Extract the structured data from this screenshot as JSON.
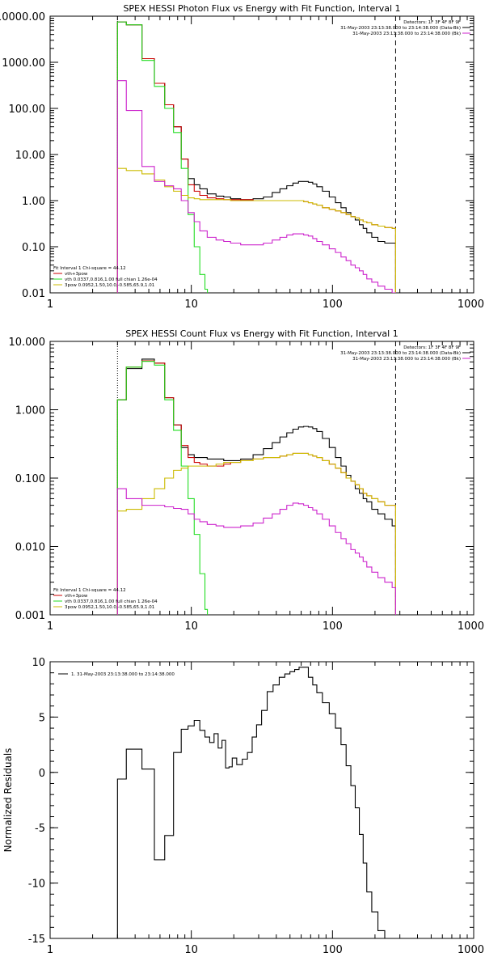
{
  "chart_data": [
    {
      "type": "line",
      "title": "SPEX HESSI Photon Flux vs Energy with Fit Function, Interval 1",
      "xlabel": "",
      "ylabel": "",
      "xscale": "log",
      "yscale": "log",
      "xlim": [
        1,
        1000
      ],
      "ylim": [
        0.01,
        10000
      ],
      "x_ticks": [
        1,
        10,
        100,
        1000
      ],
      "x_tick_labels": [
        "1",
        "10",
        "100",
        "1000"
      ],
      "y_ticks": [
        0.01,
        0.1,
        1,
        10,
        100,
        1000,
        10000
      ],
      "y_tick_labels": [
        "0.01",
        "0.10",
        "1.00",
        "10.00",
        "100.00",
        "1000.00",
        "10000.00"
      ],
      "legend_top_right": [
        "Detectors: 1F 3F 4F 8F 9F",
        "31-May-2003 23:13:38.000 to 23:14:38.000 (Data-Bk)",
        "31-May-2003 23:13:38.000 to 23:14:38.000 (Bk)"
      ],
      "legend_bottom_left": {
        "header": "Fit Interval 1   Chi-square = 44.12",
        "entries": [
          "vth+3pow",
          "vth 0.0337,0.816,1.00  full chian 1.26e-04",
          "3pow 0.0952,1.50,10.0,-0.585,65.9,1.01"
        ]
      },
      "vlines": [
        3,
        280
      ],
      "series": [
        {
          "role": "data-bk",
          "color": "#000000",
          "x": [
            3,
            4,
            5,
            6,
            7,
            8,
            9,
            10,
            11,
            12,
            14,
            16,
            18,
            20,
            25,
            30,
            35,
            40,
            45,
            50,
            55,
            60,
            65,
            70,
            75,
            80,
            90,
            100,
            110,
            120,
            130,
            140,
            150,
            160,
            170,
            180,
            200,
            220,
            250,
            280
          ],
          "values": [
            7500,
            6500,
            1200,
            350,
            120,
            40,
            8,
            3,
            2.2,
            1.8,
            1.4,
            1.25,
            1.2,
            1.1,
            1.05,
            1.1,
            1.2,
            1.5,
            1.8,
            2.1,
            2.4,
            2.6,
            2.6,
            2.5,
            2.3,
            2.0,
            1.6,
            1.2,
            0.9,
            0.7,
            0.55,
            0.45,
            0.38,
            0.3,
            0.25,
            0.2,
            0.16,
            0.13,
            0.12,
            0.12
          ]
        },
        {
          "role": "fit-total",
          "color": "#cc0000",
          "x": [
            3,
            4,
            5,
            6,
            7,
            8,
            9,
            10,
            11,
            12,
            14,
            16,
            18,
            20,
            25,
            30,
            35,
            40,
            45,
            50,
            55,
            60,
            65,
            70,
            75,
            80,
            90,
            100,
            110,
            120,
            130,
            140,
            150,
            160,
            170,
            180,
            200,
            220,
            250,
            280
          ],
          "values": [
            7500,
            6500,
            1200,
            350,
            120,
            40,
            8,
            2.2,
            1.6,
            1.3,
            1.15,
            1.1,
            1.05,
            1.05,
            1.05,
            1.0,
            1.0,
            1.0,
            1.0,
            1.0,
            1.0,
            1.0,
            0.95,
            0.9,
            0.85,
            0.8,
            0.7,
            0.65,
            0.6,
            0.55,
            0.5,
            0.45,
            0.42,
            0.38,
            0.35,
            0.33,
            0.3,
            0.28,
            0.26,
            0.25
          ]
        },
        {
          "role": "vth",
          "color": "#22dd22",
          "x": [
            3,
            4,
            5,
            6,
            7,
            8,
            9,
            10,
            11,
            12,
            13
          ],
          "values": [
            7500,
            6500,
            1100,
            300,
            100,
            30,
            5,
            0.5,
            0.1,
            0.025,
            0.012
          ]
        },
        {
          "role": "3pow",
          "color": "#ccbb00",
          "x": [
            3,
            4,
            5,
            6,
            7,
            8,
            9,
            10,
            11,
            12,
            14,
            16,
            18,
            20,
            25,
            30,
            35,
            40,
            45,
            50,
            55,
            60,
            65,
            70,
            75,
            80,
            90,
            100,
            110,
            120,
            130,
            140,
            150,
            160,
            170,
            180,
            200,
            220,
            250,
            280
          ],
          "values": [
            5.0,
            4.5,
            3.8,
            2.8,
            2.0,
            1.6,
            1.3,
            1.15,
            1.1,
            1.05,
            1.05,
            1.05,
            1.05,
            1.0,
            1.0,
            1.0,
            1.0,
            1.0,
            1.0,
            1.0,
            1.0,
            1.0,
            0.95,
            0.9,
            0.85,
            0.8,
            0.7,
            0.65,
            0.6,
            0.55,
            0.5,
            0.45,
            0.42,
            0.38,
            0.35,
            0.33,
            0.3,
            0.28,
            0.26,
            0.25
          ]
        },
        {
          "role": "bk",
          "color": "#cc22cc",
          "x": [
            3,
            4,
            5,
            6,
            7,
            8,
            9,
            10,
            11,
            12,
            14,
            16,
            18,
            20,
            25,
            30,
            35,
            40,
            45,
            50,
            55,
            60,
            65,
            70,
            75,
            80,
            90,
            100,
            110,
            120,
            130,
            140,
            150,
            160,
            170,
            180,
            200,
            220,
            250,
            280
          ],
          "values": [
            400,
            90,
            5.5,
            2.6,
            2.1,
            1.8,
            1.0,
            0.55,
            0.35,
            0.22,
            0.16,
            0.14,
            0.13,
            0.12,
            0.11,
            0.11,
            0.12,
            0.14,
            0.16,
            0.18,
            0.19,
            0.19,
            0.18,
            0.17,
            0.15,
            0.13,
            0.11,
            0.09,
            0.075,
            0.06,
            0.05,
            0.04,
            0.035,
            0.03,
            0.025,
            0.02,
            0.017,
            0.014,
            0.012,
            0.01
          ]
        }
      ]
    },
    {
      "type": "line",
      "title": "SPEX HESSI Count Flux vs Energy with Fit Function, Interval 1",
      "xlabel": "",
      "ylabel": "",
      "xscale": "log",
      "yscale": "log",
      "xlim": [
        1,
        1000
      ],
      "ylim": [
        0.001,
        10
      ],
      "x_ticks": [
        1,
        10,
        100,
        1000
      ],
      "x_tick_labels": [
        "1",
        "10",
        "100",
        "1000"
      ],
      "y_ticks": [
        0.001,
        0.01,
        0.1,
        1,
        10
      ],
      "y_tick_labels": [
        "0.001",
        "0.010",
        "0.100",
        "1.000",
        "10.000"
      ],
      "legend_top_right": [
        "Detectors: 1F 3F 4F 8F 9F",
        "31-May-2003 23:13:38.000 to 23:14:38.000 (Data-Bk)",
        "31-May-2003 23:13:38.000 to 23:14:38.000 (Bk)"
      ],
      "legend_bottom_left": {
        "header": "Fit Interval 1   Chi-square = 44.12",
        "entries": [
          "vth+3pow",
          "vth 0.0337,0.816,1.00  full chian 1.26e-04",
          "3pow 0.0952,1.50,10.0,-0.585,65.9,1.01"
        ]
      },
      "vlines": [
        3,
        280
      ],
      "series": [
        {
          "role": "data-bk",
          "color": "#000000",
          "x": [
            3,
            4,
            5,
            6,
            7,
            8,
            9,
            10,
            11,
            12,
            14,
            16,
            18,
            20,
            25,
            30,
            35,
            40,
            45,
            50,
            55,
            60,
            65,
            70,
            75,
            80,
            90,
            100,
            110,
            120,
            130,
            140,
            150,
            160,
            170,
            180,
            200,
            220,
            250,
            280
          ],
          "values": [
            1.4,
            4.0,
            5.5,
            4.8,
            1.5,
            0.6,
            0.28,
            0.22,
            0.2,
            0.2,
            0.19,
            0.19,
            0.18,
            0.18,
            0.19,
            0.22,
            0.27,
            0.33,
            0.4,
            0.46,
            0.52,
            0.56,
            0.57,
            0.56,
            0.53,
            0.48,
            0.38,
            0.28,
            0.2,
            0.15,
            0.11,
            0.09,
            0.07,
            0.06,
            0.05,
            0.045,
            0.035,
            0.03,
            0.025,
            0.02
          ]
        },
        {
          "role": "fit-total",
          "color": "#cc0000",
          "x": [
            3,
            4,
            5,
            6,
            7,
            8,
            9,
            10,
            11,
            12,
            14,
            16,
            18,
            20,
            25,
            30,
            35,
            40,
            45,
            50,
            55,
            60,
            65,
            70,
            75,
            80,
            90,
            100,
            110,
            120,
            130,
            140,
            150,
            160,
            170,
            180,
            200,
            220,
            250,
            280
          ],
          "values": [
            1.4,
            4.2,
            5.2,
            4.8,
            1.5,
            0.6,
            0.3,
            0.2,
            0.17,
            0.16,
            0.15,
            0.15,
            0.16,
            0.17,
            0.18,
            0.19,
            0.2,
            0.2,
            0.21,
            0.22,
            0.23,
            0.23,
            0.23,
            0.22,
            0.21,
            0.2,
            0.18,
            0.16,
            0.14,
            0.12,
            0.1,
            0.09,
            0.08,
            0.07,
            0.06,
            0.055,
            0.05,
            0.045,
            0.04,
            0.04
          ]
        },
        {
          "role": "vth",
          "color": "#22dd22",
          "x": [
            3,
            4,
            5,
            6,
            7,
            8,
            9,
            10,
            11,
            12,
            13
          ],
          "values": [
            1.4,
            4.2,
            5.1,
            4.5,
            1.4,
            0.5,
            0.15,
            0.05,
            0.015,
            0.004,
            0.0012
          ]
        },
        {
          "role": "3pow",
          "color": "#ccbb00",
          "x": [
            3,
            4,
            5,
            6,
            7,
            8,
            9,
            10,
            11,
            12,
            14,
            16,
            18,
            20,
            25,
            30,
            35,
            40,
            45,
            50,
            55,
            60,
            65,
            70,
            75,
            80,
            90,
            100,
            110,
            120,
            130,
            140,
            150,
            160,
            170,
            180,
            200,
            220,
            250,
            280
          ],
          "values": [
            0.033,
            0.035,
            0.05,
            0.07,
            0.1,
            0.13,
            0.14,
            0.15,
            0.15,
            0.15,
            0.15,
            0.16,
            0.17,
            0.17,
            0.18,
            0.19,
            0.2,
            0.2,
            0.21,
            0.22,
            0.23,
            0.23,
            0.23,
            0.22,
            0.21,
            0.2,
            0.18,
            0.16,
            0.14,
            0.12,
            0.1,
            0.09,
            0.08,
            0.07,
            0.06,
            0.055,
            0.05,
            0.045,
            0.04,
            0.04
          ]
        },
        {
          "role": "bk",
          "color": "#cc22cc",
          "x": [
            3,
            4,
            5,
            6,
            7,
            8,
            9,
            10,
            11,
            12,
            14,
            16,
            18,
            20,
            25,
            30,
            35,
            40,
            45,
            50,
            55,
            60,
            65,
            70,
            75,
            80,
            90,
            100,
            110,
            120,
            130,
            140,
            150,
            160,
            170,
            180,
            200,
            220,
            250,
            280
          ],
          "values": [
            0.07,
            0.05,
            0.04,
            0.04,
            0.038,
            0.036,
            0.035,
            0.03,
            0.025,
            0.023,
            0.021,
            0.02,
            0.019,
            0.019,
            0.02,
            0.022,
            0.026,
            0.03,
            0.035,
            0.04,
            0.043,
            0.042,
            0.04,
            0.037,
            0.034,
            0.03,
            0.025,
            0.02,
            0.016,
            0.013,
            0.011,
            0.009,
            0.008,
            0.007,
            0.006,
            0.005,
            0.0042,
            0.0035,
            0.003,
            0.0025
          ]
        }
      ]
    },
    {
      "type": "line",
      "title": "",
      "xlabel": "",
      "ylabel": "Normalized Residuals",
      "xscale": "log",
      "yscale": "linear",
      "xlim": [
        1,
        1000
      ],
      "ylim": [
        -15,
        10
      ],
      "x_ticks": [
        1,
        10,
        100,
        1000
      ],
      "x_tick_labels": [
        "1",
        "10",
        "100",
        "1000"
      ],
      "y_ticks": [
        -15,
        -10,
        -5,
        0,
        5,
        10
      ],
      "y_tick_labels": [
        "-15",
        "-10",
        "-5",
        "0",
        "5",
        "10"
      ],
      "legend_top_left": [
        "1. 31-May-2003 23:13:38.000 to 23:14:38.000"
      ],
      "series": [
        {
          "role": "residuals",
          "color": "#000000",
          "x": [
            3,
            4,
            5,
            6,
            7,
            8,
            9,
            10,
            11,
            12,
            13,
            14,
            15,
            16,
            17,
            18,
            19,
            20,
            22,
            24,
            26,
            28,
            30,
            33,
            36,
            40,
            44,
            48,
            52,
            56,
            60,
            65,
            70,
            75,
            80,
            90,
            100,
            110,
            120,
            130,
            140,
            150,
            160,
            170,
            180,
            200,
            220,
            250,
            280
          ],
          "values": [
            -0.6,
            2.1,
            0.3,
            -7.9,
            -5.7,
            1.8,
            3.9,
            4.2,
            4.7,
            3.8,
            3.2,
            2.7,
            3.5,
            2.2,
            2.9,
            0.4,
            0.5,
            1.3,
            0.7,
            1.2,
            1.8,
            3.2,
            4.3,
            5.6,
            7.3,
            7.9,
            8.6,
            8.9,
            9.1,
            9.3,
            9.5,
            9.5,
            8.6,
            7.9,
            7.2,
            6.3,
            5.3,
            4.0,
            2.5,
            0.6,
            -1.2,
            -3.2,
            -5.6,
            -8.2,
            -10.8,
            -12.6,
            -14.3,
            -15,
            -15
          ]
        }
      ]
    }
  ]
}
